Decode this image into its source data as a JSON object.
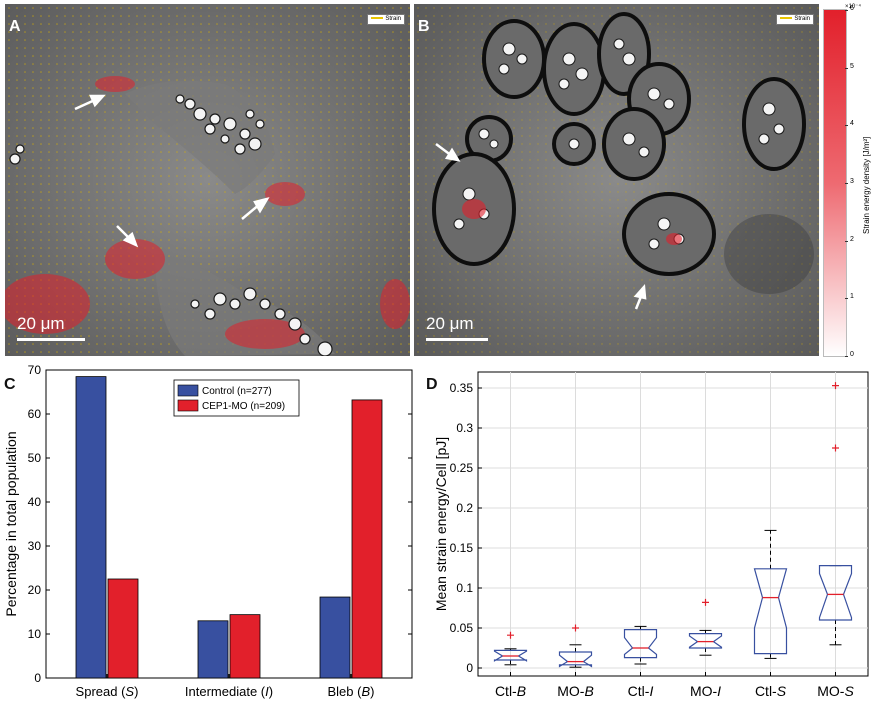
{
  "panels": {
    "a": {
      "letter": "A",
      "scalebar": "20 μm",
      "legend": "Strain"
    },
    "b": {
      "letter": "B",
      "scalebar": "20 μm",
      "legend": "Strain"
    },
    "c": {
      "letter": "C"
    },
    "d": {
      "letter": "D"
    }
  },
  "colorbar": {
    "label": "Strain energy density [J/m²]",
    "exponent": "×10⁻⁴",
    "ticks": [
      "6",
      "5",
      "4",
      "3",
      "2",
      "1",
      "0"
    ],
    "color_high": "#e2202b",
    "color_low": "#ffffff"
  },
  "chart_data": [
    {
      "type": "bar",
      "ylabel": "Percentage in total population",
      "xlabel": "",
      "ylim": [
        0,
        70
      ],
      "yticks": [
        "0",
        "10",
        "20",
        "30",
        "40",
        "50",
        "60",
        "70"
      ],
      "categories": [
        "Spread (S)",
        "Intermediate (I)",
        "Bleb (B)"
      ],
      "series": [
        {
          "name": "Control (n=277)",
          "color": "#3850a0",
          "values": [
            68.5,
            13.0,
            18.4
          ]
        },
        {
          "name": "CEP1-MO (n=209)",
          "color": "#e2202b",
          "values": [
            22.5,
            14.4,
            63.2
          ]
        }
      ],
      "legend_position": "top-center",
      "grid": false
    },
    {
      "type": "box",
      "ylabel": "Mean strain energy/Cell [pJ]",
      "xlabel": "",
      "ylim": [
        -0.01,
        0.37
      ],
      "yticks": [
        "0",
        "0.05",
        "0.1",
        "0.15",
        "0.2",
        "0.25",
        "0.3",
        "0.35"
      ],
      "categories": [
        "Ctl-B",
        "MO-B",
        "Ctl-I",
        "MO-I",
        "Ctl-S",
        "MO-S"
      ],
      "grid": true,
      "box_color": "#3850a0",
      "median_color": "#e2202b",
      "outlier_color": "#e2202b",
      "boxes": [
        {
          "q1": 0.01,
          "median": 0.015,
          "q3": 0.022,
          "whisker_low": 0.004,
          "whisker_high": 0.024,
          "notch_low": 0.009,
          "notch_high": 0.021,
          "outliers": [
            0.041
          ]
        },
        {
          "q1": 0.004,
          "median": 0.008,
          "q3": 0.02,
          "whisker_low": 0.001,
          "whisker_high": 0.029,
          "notch_low": 0.002,
          "notch_high": 0.016,
          "outliers": [
            0.05
          ]
        },
        {
          "q1": 0.013,
          "median": 0.025,
          "q3": 0.048,
          "whisker_low": 0.005,
          "whisker_high": 0.052,
          "notch_low": 0.017,
          "notch_high": 0.038,
          "outliers": []
        },
        {
          "q1": 0.025,
          "median": 0.033,
          "q3": 0.043,
          "whisker_low": 0.016,
          "whisker_high": 0.047,
          "notch_low": 0.026,
          "notch_high": 0.04,
          "outliers": [
            0.082
          ]
        },
        {
          "q1": 0.018,
          "median": 0.088,
          "q3": 0.124,
          "whisker_low": 0.012,
          "whisker_high": 0.172,
          "notch_low": 0.05,
          "notch_high": 0.124,
          "outliers": []
        },
        {
          "q1": 0.06,
          "median": 0.092,
          "q3": 0.128,
          "whisker_low": 0.029,
          "whisker_high": 0.128,
          "notch_low": 0.063,
          "notch_high": 0.118,
          "outliers": [
            0.275,
            0.353
          ]
        }
      ]
    }
  ]
}
